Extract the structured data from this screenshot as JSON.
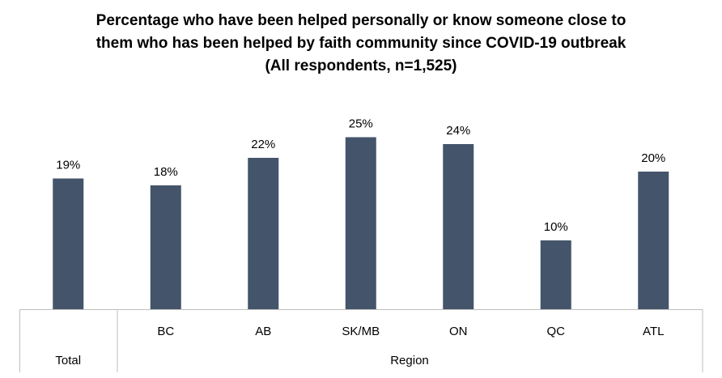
{
  "chart_data": {
    "type": "bar",
    "title_lines": [
      "Percentage who have been helped personally or know someone close to",
      "them who has been helped by faith community since COVID-19 outbreak",
      "(All respondents,  n=1,525)"
    ],
    "categories": [
      "",
      "BC",
      "AB",
      "SK/MB",
      "ON",
      "QC",
      "ATL"
    ],
    "groups": [
      {
        "label": "Total",
        "span": 1
      },
      {
        "label": "Region",
        "span": 6
      }
    ],
    "values": [
      19,
      18,
      22,
      25,
      24,
      10,
      20
    ],
    "value_labels": [
      "19%",
      "18%",
      "22%",
      "25%",
      "24%",
      "10%",
      "20%"
    ],
    "bar_color": "#44546A",
    "ylim": [
      0,
      25
    ],
    "grid": false,
    "legend": "none"
  }
}
